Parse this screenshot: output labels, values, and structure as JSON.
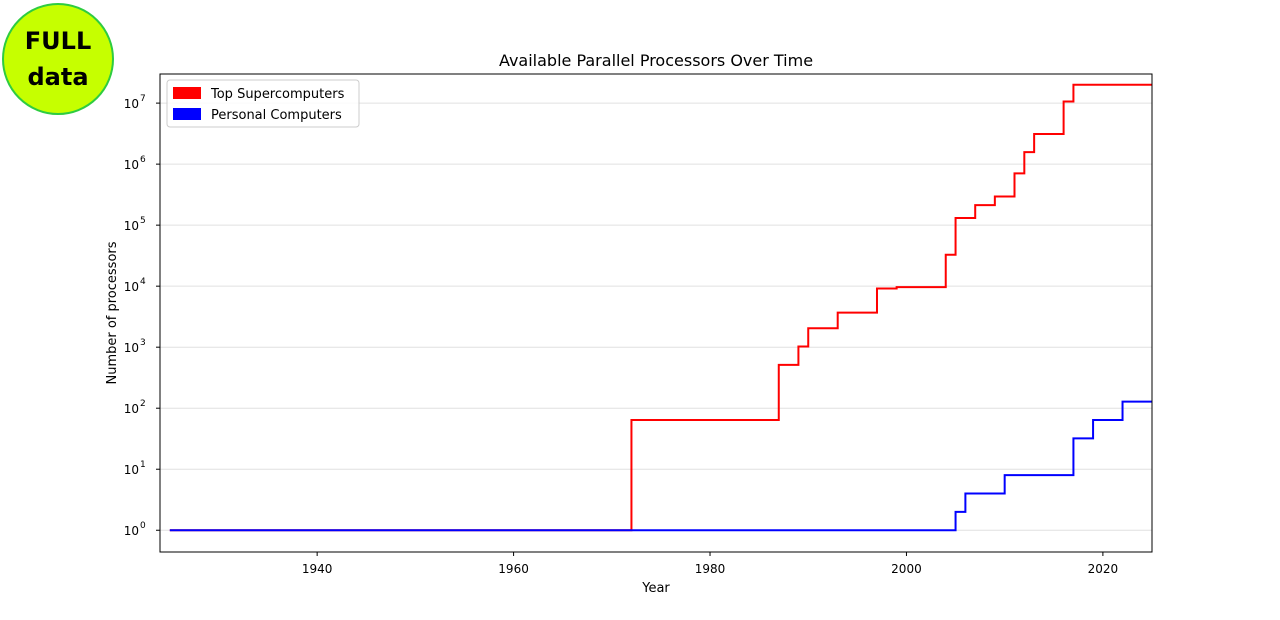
{
  "badge": {
    "line1": "FULL",
    "line2": "data",
    "color": "#c6ff00",
    "border_color": "#2ecc40"
  },
  "chart_data": {
    "type": "line",
    "title": "Available Parallel Processors Over Time",
    "xlabel": "Year",
    "ylabel": "Number of processors",
    "xlim": [
      1924,
      2025
    ],
    "ylim": [
      0.44,
      30000000
    ],
    "y_scale": "log",
    "grid": "horizontal",
    "legend_placement": "top-left",
    "x_ticks": [
      1940,
      1960,
      1980,
      2000,
      2020
    ],
    "y_ticks": [
      {
        "value": 1,
        "base": "10",
        "exp": "0"
      },
      {
        "value": 10,
        "base": "10",
        "exp": "1"
      },
      {
        "value": 100,
        "base": "10",
        "exp": "2"
      },
      {
        "value": 1000,
        "base": "10",
        "exp": "3"
      },
      {
        "value": 10000,
        "base": "10",
        "exp": "4"
      },
      {
        "value": 100000,
        "base": "10",
        "exp": "5"
      },
      {
        "value": 1000000,
        "base": "10",
        "exp": "6"
      },
      {
        "value": 10000000,
        "base": "10",
        "exp": "7"
      }
    ],
    "series": [
      {
        "name": "Top Supercomputers",
        "color": "#ff0000",
        "step": "post",
        "x": [
          1925,
          1972,
          1987,
          1989,
          1990,
          1993,
          1997,
          1999,
          2004,
          2005,
          2007,
          2009,
          2011,
          2012,
          2013,
          2016,
          2017,
          2025
        ],
        "y": [
          1,
          64,
          512,
          1024,
          2048,
          3680,
          9152,
          9632,
          32768,
          131072,
          212992,
          294912,
          705024,
          1572864,
          3120000,
          10649600,
          20000000,
          20000000
        ]
      },
      {
        "name": "Personal Computers",
        "color": "#0000ff",
        "step": "post",
        "x": [
          1925,
          2005,
          2006,
          2010,
          2017,
          2019,
          2022,
          2025
        ],
        "y": [
          1,
          2,
          4,
          8,
          32,
          64,
          128,
          128
        ]
      }
    ]
  }
}
